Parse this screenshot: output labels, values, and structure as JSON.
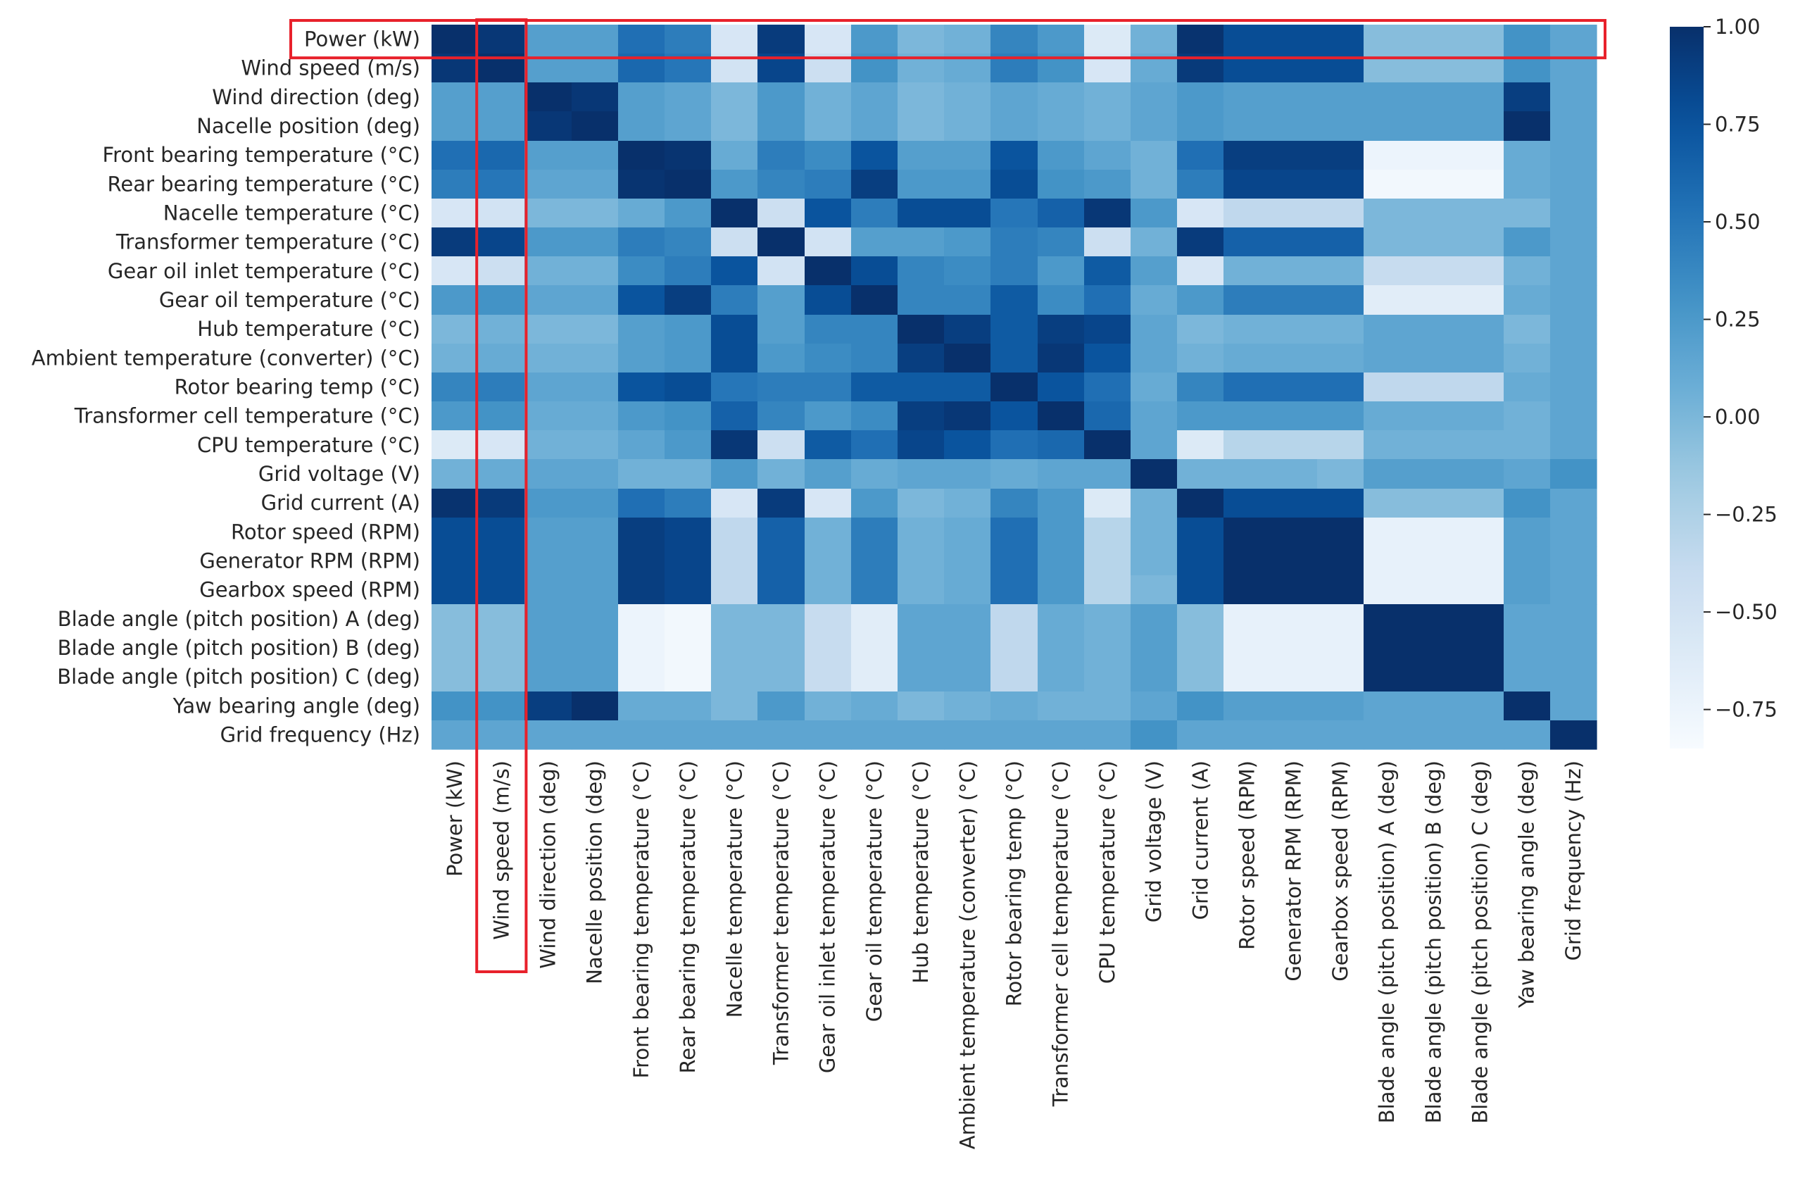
{
  "chart_data": {
    "type": "heatmap",
    "title": "",
    "xlabel": "",
    "ylabel": "",
    "colormap": "Blues",
    "vmin": -0.85,
    "vmax": 1.0,
    "colorbar_ticks": [
      {
        "value": 1.0,
        "label": "1.00"
      },
      {
        "value": 0.75,
        "label": "0.75"
      },
      {
        "value": 0.5,
        "label": "0.50"
      },
      {
        "value": 0.25,
        "label": "0.25"
      },
      {
        "value": 0.0,
        "label": "0.00"
      },
      {
        "value": -0.25,
        "label": "−0.25"
      },
      {
        "value": -0.5,
        "label": "−0.50"
      },
      {
        "value": -0.75,
        "label": "−0.75"
      }
    ],
    "labels": [
      "Power (kW)",
      "Wind speed (m/s)",
      "Wind direction (deg)",
      "Nacelle position (deg)",
      "Front bearing temperature (°C)",
      "Rear bearing temperature (°C)",
      "Nacelle temperature (°C)",
      "Transformer temperature (°C)",
      "Gear oil inlet temperature (°C)",
      "Gear oil temperature (°C)",
      "Hub temperature (°C)",
      "Ambient temperature (converter) (°C)",
      "Rotor bearing temp (°C)",
      "Transformer cell temperature (°C)",
      "CPU temperature (°C)",
      "Grid voltage (V)",
      "Grid current (A)",
      "Rotor speed (RPM)",
      "Generator RPM (RPM)",
      "Gearbox speed (RPM)",
      "Blade angle (pitch position) A (deg)",
      "Blade angle (pitch position) B (deg)",
      "Blade angle (pitch position) C (deg)",
      "Yaw bearing angle (deg)",
      "Grid frequency (Hz)"
    ],
    "matrix": [
      [
        1.0,
        0.95,
        0.2,
        0.2,
        0.55,
        0.45,
        -0.55,
        0.92,
        -0.55,
        0.25,
        0.0,
        0.05,
        0.4,
        0.25,
        -0.6,
        0.05,
        0.98,
        0.8,
        0.8,
        0.8,
        -0.05,
        -0.05,
        -0.05,
        0.3,
        0.15
      ],
      [
        0.95,
        1.0,
        0.2,
        0.2,
        0.6,
        0.5,
        -0.5,
        0.85,
        -0.45,
        0.3,
        0.05,
        0.1,
        0.45,
        0.3,
        -0.55,
        0.1,
        0.93,
        0.8,
        0.8,
        0.8,
        -0.05,
        -0.05,
        -0.05,
        0.3,
        0.15
      ],
      [
        0.2,
        0.2,
        1.0,
        0.95,
        0.2,
        0.15,
        0.0,
        0.25,
        0.05,
        0.15,
        0.0,
        0.05,
        0.15,
        0.1,
        0.05,
        0.15,
        0.25,
        0.2,
        0.2,
        0.2,
        0.2,
        0.2,
        0.2,
        0.9,
        0.15
      ],
      [
        0.2,
        0.2,
        0.95,
        1.0,
        0.2,
        0.15,
        0.0,
        0.25,
        0.05,
        0.15,
        0.0,
        0.05,
        0.15,
        0.1,
        0.05,
        0.15,
        0.25,
        0.2,
        0.2,
        0.2,
        0.2,
        0.2,
        0.2,
        1.0,
        0.15
      ],
      [
        0.55,
        0.6,
        0.2,
        0.2,
        1.0,
        0.97,
        0.1,
        0.45,
        0.35,
        0.75,
        0.2,
        0.2,
        0.75,
        0.25,
        0.15,
        0.05,
        0.55,
        0.9,
        0.9,
        0.9,
        -0.75,
        -0.75,
        -0.75,
        0.1,
        0.15
      ],
      [
        0.45,
        0.5,
        0.15,
        0.15,
        0.97,
        1.0,
        0.25,
        0.4,
        0.45,
        0.9,
        0.25,
        0.25,
        0.8,
        0.3,
        0.25,
        0.05,
        0.45,
        0.85,
        0.85,
        0.85,
        -0.8,
        -0.8,
        -0.8,
        0.1,
        0.15
      ],
      [
        -0.55,
        -0.5,
        0.0,
        0.0,
        0.1,
        0.25,
        1.0,
        -0.45,
        0.75,
        0.45,
        0.8,
        0.8,
        0.5,
        0.65,
        0.95,
        0.25,
        -0.55,
        -0.35,
        -0.35,
        -0.35,
        0.0,
        0.0,
        0.0,
        0.0,
        0.15
      ],
      [
        0.92,
        0.85,
        0.25,
        0.25,
        0.45,
        0.4,
        -0.45,
        1.0,
        -0.5,
        0.2,
        0.2,
        0.25,
        0.45,
        0.4,
        -0.45,
        0.05,
        0.92,
        0.65,
        0.65,
        0.65,
        0.0,
        0.0,
        0.0,
        0.25,
        0.15
      ],
      [
        -0.55,
        -0.45,
        0.05,
        0.05,
        0.35,
        0.45,
        0.75,
        -0.5,
        1.0,
        0.8,
        0.4,
        0.35,
        0.45,
        0.25,
        0.7,
        0.2,
        -0.55,
        0.05,
        0.05,
        0.05,
        -0.4,
        -0.4,
        -0.4,
        0.05,
        0.15
      ],
      [
        0.25,
        0.3,
        0.15,
        0.15,
        0.75,
        0.9,
        0.45,
        0.2,
        0.8,
        1.0,
        0.4,
        0.4,
        0.7,
        0.35,
        0.55,
        0.1,
        0.25,
        0.45,
        0.45,
        0.45,
        -0.65,
        -0.65,
        -0.65,
        0.1,
        0.15
      ],
      [
        0.0,
        0.05,
        0.0,
        0.0,
        0.2,
        0.25,
        0.8,
        0.2,
        0.4,
        0.4,
        1.0,
        0.9,
        0.7,
        0.9,
        0.85,
        0.15,
        0.0,
        0.05,
        0.05,
        0.05,
        0.15,
        0.15,
        0.15,
        0.0,
        0.15
      ],
      [
        0.05,
        0.1,
        0.05,
        0.05,
        0.2,
        0.25,
        0.8,
        0.25,
        0.35,
        0.4,
        0.9,
        1.0,
        0.7,
        0.95,
        0.75,
        0.15,
        0.05,
        0.1,
        0.1,
        0.1,
        0.15,
        0.15,
        0.15,
        0.05,
        0.15
      ],
      [
        0.4,
        0.45,
        0.15,
        0.15,
        0.75,
        0.8,
        0.5,
        0.45,
        0.45,
        0.7,
        0.7,
        0.7,
        1.0,
        0.75,
        0.55,
        0.1,
        0.4,
        0.55,
        0.55,
        0.55,
        -0.35,
        -0.35,
        -0.35,
        0.1,
        0.15
      ],
      [
        0.25,
        0.3,
        0.1,
        0.1,
        0.25,
        0.3,
        0.65,
        0.4,
        0.25,
        0.35,
        0.9,
        0.95,
        0.75,
        1.0,
        0.6,
        0.15,
        0.25,
        0.25,
        0.25,
        0.25,
        0.1,
        0.1,
        0.1,
        0.05,
        0.15
      ],
      [
        -0.6,
        -0.55,
        0.05,
        0.05,
        0.15,
        0.25,
        0.95,
        -0.45,
        0.7,
        0.55,
        0.85,
        0.75,
        0.55,
        0.6,
        1.0,
        0.15,
        -0.6,
        -0.3,
        -0.3,
        -0.3,
        0.05,
        0.05,
        0.05,
        0.05,
        0.15
      ],
      [
        0.05,
        0.1,
        0.15,
        0.15,
        0.05,
        0.05,
        0.25,
        0.05,
        0.2,
        0.1,
        0.15,
        0.15,
        0.1,
        0.15,
        0.15,
        1.0,
        0.05,
        0.05,
        0.05,
        0.0,
        0.2,
        0.2,
        0.2,
        0.15,
        0.3
      ],
      [
        0.98,
        0.93,
        0.25,
        0.25,
        0.55,
        0.45,
        -0.55,
        0.92,
        -0.55,
        0.25,
        0.0,
        0.05,
        0.4,
        0.25,
        -0.6,
        0.05,
        1.0,
        0.8,
        0.8,
        0.8,
        -0.05,
        -0.05,
        -0.05,
        0.3,
        0.15
      ],
      [
        0.8,
        0.8,
        0.2,
        0.2,
        0.9,
        0.85,
        -0.35,
        0.65,
        0.05,
        0.45,
        0.05,
        0.1,
        0.55,
        0.25,
        -0.3,
        0.05,
        0.8,
        1.0,
        1.0,
        1.0,
        -0.7,
        -0.7,
        -0.7,
        0.2,
        0.15
      ],
      [
        0.8,
        0.8,
        0.2,
        0.2,
        0.9,
        0.85,
        -0.35,
        0.65,
        0.05,
        0.45,
        0.05,
        0.1,
        0.55,
        0.25,
        -0.3,
        0.05,
        0.8,
        1.0,
        1.0,
        1.0,
        -0.7,
        -0.7,
        -0.7,
        0.2,
        0.15
      ],
      [
        0.8,
        0.8,
        0.2,
        0.2,
        0.9,
        0.85,
        -0.35,
        0.65,
        0.05,
        0.45,
        0.05,
        0.1,
        0.55,
        0.25,
        -0.3,
        0.0,
        0.8,
        1.0,
        1.0,
        1.0,
        -0.7,
        -0.7,
        -0.7,
        0.2,
        0.15
      ],
      [
        -0.05,
        -0.05,
        0.2,
        0.2,
        -0.75,
        -0.8,
        0.0,
        0.0,
        -0.4,
        -0.65,
        0.15,
        0.15,
        -0.35,
        0.1,
        0.05,
        0.2,
        -0.05,
        -0.7,
        -0.7,
        -0.7,
        1.0,
        1.0,
        1.0,
        0.15,
        0.15
      ],
      [
        -0.05,
        -0.05,
        0.2,
        0.2,
        -0.75,
        -0.8,
        0.0,
        0.0,
        -0.4,
        -0.65,
        0.15,
        0.15,
        -0.35,
        0.1,
        0.05,
        0.2,
        -0.05,
        -0.7,
        -0.7,
        -0.7,
        1.0,
        1.0,
        1.0,
        0.15,
        0.15
      ],
      [
        -0.05,
        -0.05,
        0.2,
        0.2,
        -0.75,
        -0.8,
        0.0,
        0.0,
        -0.4,
        -0.65,
        0.15,
        0.15,
        -0.35,
        0.1,
        0.05,
        0.2,
        -0.05,
        -0.7,
        -0.7,
        -0.7,
        1.0,
        1.0,
        1.0,
        0.15,
        0.15
      ],
      [
        0.3,
        0.3,
        0.9,
        1.0,
        0.1,
        0.1,
        0.0,
        0.25,
        0.05,
        0.1,
        0.0,
        0.05,
        0.1,
        0.05,
        0.05,
        0.15,
        0.3,
        0.2,
        0.2,
        0.2,
        0.15,
        0.15,
        0.15,
        1.0,
        0.15
      ],
      [
        0.15,
        0.15,
        0.15,
        0.15,
        0.15,
        0.15,
        0.15,
        0.15,
        0.15,
        0.15,
        0.15,
        0.15,
        0.15,
        0.15,
        0.15,
        0.3,
        0.15,
        0.15,
        0.15,
        0.15,
        0.15,
        0.15,
        0.15,
        0.15,
        1.0
      ]
    ],
    "highlights": [
      {
        "kind": "row",
        "label": "Power (kW)",
        "color": "#e8212b"
      },
      {
        "kind": "column",
        "label": "Wind speed (m/s)",
        "color": "#e8212b"
      }
    ]
  }
}
